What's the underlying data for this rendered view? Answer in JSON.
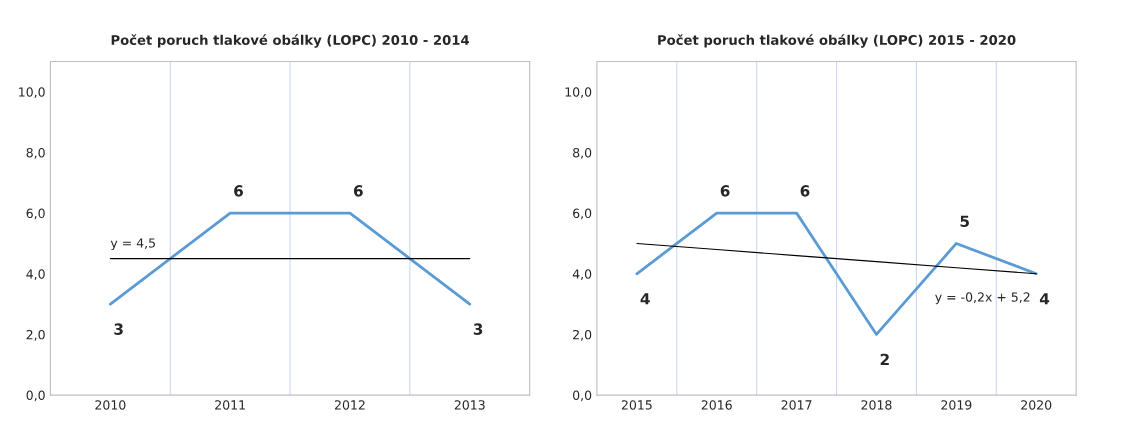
{
  "chart_data": [
    {
      "type": "line",
      "title": "Počet poruch tlakové obálky (LOPC) 2010 - 2014",
      "categories": [
        "2010",
        "2011",
        "2012",
        "2013"
      ],
      "series": [
        {
          "color": "#5b9bd5",
          "values": [
            3,
            6,
            6,
            3
          ],
          "data_labels": true
        },
        {
          "type": "line",
          "color": "#000000",
          "values": [
            4.5,
            4.5,
            4.5,
            4.5
          ]
        }
      ],
      "annotations": [
        {
          "text": "y = 4,5",
          "x": "2010",
          "y": 4.5
        }
      ],
      "ylim": [
        0,
        11
      ],
      "yticks": [
        {
          "value": 0,
          "label": "0,0"
        },
        {
          "value": 2,
          "label": "2,0"
        },
        {
          "value": 4,
          "label": "4,0"
        },
        {
          "value": 6,
          "label": "6,0"
        },
        {
          "value": 8,
          "label": "8,0"
        },
        {
          "value": 10,
          "label": "10,0"
        }
      ],
      "grid": "x",
      "legend": false,
      "marker": "none",
      "line_style": "solid"
    },
    {
      "type": "line",
      "title": "Počet poruch tlakové obálky (LOPC) 2015 - 2020",
      "categories": [
        "2015",
        "2016",
        "2017",
        "2018",
        "2019",
        "2020"
      ],
      "series": [
        {
          "color": "#5b9bd5",
          "values": [
            4,
            6,
            6,
            2,
            5,
            4
          ],
          "data_labels": true
        },
        {
          "type": "line",
          "color": "#000000",
          "values": [
            5.0,
            4.8,
            4.6,
            4.4,
            4.2,
            4.0
          ]
        }
      ],
      "annotations": [
        {
          "text": "y = -0,2x + 5,2",
          "x": "2020",
          "y": 4.0
        }
      ],
      "ylim": [
        0,
        11
      ],
      "yticks": [
        {
          "value": 0,
          "label": "0,0"
        },
        {
          "value": 2,
          "label": "2,0"
        },
        {
          "value": 4,
          "label": "4,0"
        },
        {
          "value": 6,
          "label": "6,0"
        },
        {
          "value": 8,
          "label": "8,0"
        },
        {
          "value": 10,
          "label": "10,0"
        }
      ],
      "grid": "x",
      "legend": false,
      "marker": "none",
      "line_style": "solid"
    }
  ]
}
